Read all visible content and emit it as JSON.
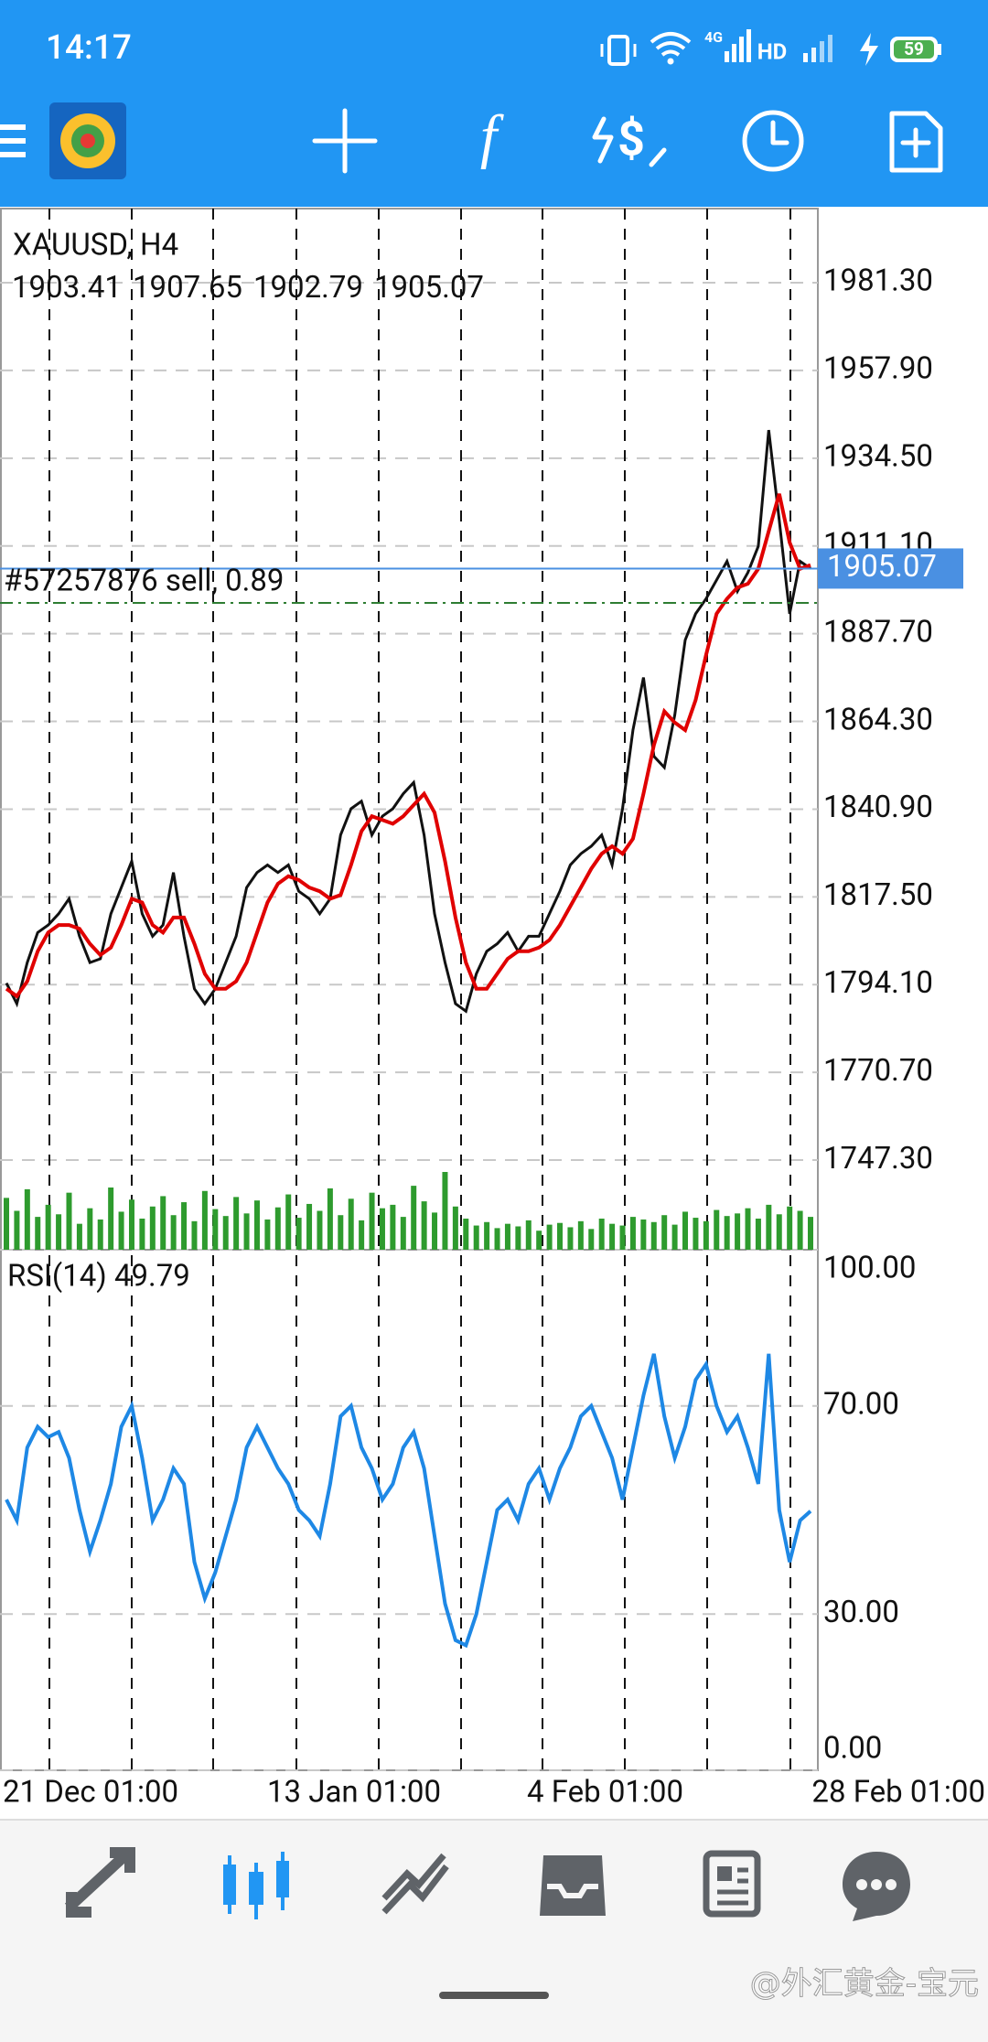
{
  "status_bar": {
    "time": "14:17",
    "network": "4G",
    "hd": "HD",
    "battery": "59"
  },
  "chart": {
    "symbol": "XAUUSD, H4",
    "ohlc": [
      1903.41,
      1907.65,
      1902.79,
      1905.07
    ],
    "order_label": "#57257876 sell, 0.89",
    "order_price": 1895.9,
    "current_price": 1905.07,
    "ylim": [
      1723.4,
      2001.07
    ],
    "yticks": [
      {
        "value": 1981.3,
        "label": "1981.30"
      },
      {
        "value": 1957.9,
        "label": "1957.90"
      },
      {
        "value": 1934.5,
        "label": "1934.50"
      },
      {
        "value": 1911.1,
        "label": "1911.10"
      },
      {
        "value": 1887.7,
        "label": "1887.70"
      },
      {
        "value": 1864.3,
        "label": "1864.30"
      },
      {
        "value": 1840.9,
        "label": "1840.90"
      },
      {
        "value": 1817.5,
        "label": "1817.50"
      },
      {
        "value": 1794.1,
        "label": "1794.10"
      },
      {
        "value": 1770.7,
        "label": "1770.70"
      },
      {
        "value": 1747.3,
        "label": "1747.30"
      }
    ],
    "x_labels": [
      "21 Dec 01:00",
      "13 Jan 01:00",
      "4 Feb 01:00",
      "28 Feb 01:00"
    ],
    "close": [
      1794.5,
      1789,
      1800,
      1808,
      1810,
      1813,
      1817,
      1807,
      1800,
      1801,
      1813,
      1820,
      1827,
      1813,
      1807,
      1810,
      1824,
      1807,
      1793,
      1789,
      1793,
      1800,
      1807,
      1820,
      1824,
      1826,
      1824,
      1826,
      1819,
      1817,
      1813,
      1817,
      1834,
      1841,
      1843,
      1834,
      1839,
      1841,
      1845,
      1848,
      1834,
      1813,
      1800,
      1789,
      1787,
      1797,
      1803,
      1805,
      1808,
      1803,
      1807,
      1807,
      1813,
      1819,
      1826,
      1829,
      1831,
      1834,
      1826,
      1841,
      1862,
      1876,
      1855,
      1852,
      1866,
      1886,
      1893,
      1897,
      1902,
      1907,
      1899,
      1904,
      1911,
      1942,
      1918,
      1893,
      1907,
      1905.07
    ],
    "ma": [
      1793,
      1791,
      1795,
      1803,
      1808,
      1810,
      1810,
      1809,
      1805,
      1802,
      1804,
      1810,
      1817,
      1816,
      1810,
      1808,
      1812,
      1812,
      1805,
      1797,
      1793,
      1793,
      1795,
      1800,
      1808,
      1816,
      1821,
      1823,
      1822,
      1820,
      1819,
      1817,
      1818,
      1826,
      1835,
      1839,
      1838,
      1837,
      1839,
      1842,
      1845,
      1840,
      1827,
      1812,
      1800,
      1793,
      1793,
      1797,
      1801,
      1803,
      1803,
      1804,
      1806,
      1810,
      1815,
      1820,
      1825,
      1829,
      1831,
      1829,
      1833,
      1845,
      1858,
      1867,
      1864,
      1862,
      1870,
      1882,
      1893,
      1897,
      1900,
      1901,
      1905,
      1915,
      1925,
      1912,
      1905,
      1906
    ],
    "volume": [
      60,
      45,
      70,
      38,
      52,
      41,
      66,
      30,
      48,
      35,
      72,
      44,
      58,
      36,
      50,
      62,
      40,
      55,
      33,
      68,
      47,
      39,
      61,
      42,
      57,
      35,
      49,
      64,
      37,
      53,
      45,
      71,
      40,
      59,
      34,
      66,
      48,
      52,
      38,
      74,
      56,
      43,
      90,
      50,
      36,
      28,
      32,
      25,
      30,
      27,
      34,
      22,
      29,
      31,
      26,
      33,
      24,
      36,
      30,
      28,
      38,
      35,
      32,
      40,
      29,
      44,
      37,
      33,
      46,
      39,
      42,
      48,
      36,
      52,
      41,
      50,
      45,
      38
    ],
    "rsi": {
      "title": "RSI(14) 49.79",
      "ylim": [
        0,
        100
      ],
      "yticks": [
        {
          "value": 100,
          "label": "100.00"
        },
        {
          "value": 70,
          "label": "70.00"
        },
        {
          "value": 30,
          "label": "30.00"
        },
        {
          "value": 0,
          "label": "0.00"
        }
      ],
      "values": [
        52,
        48,
        62,
        66,
        64,
        65,
        60,
        50,
        42,
        48,
        55,
        66,
        70,
        60,
        48,
        52,
        58,
        55,
        40,
        33,
        38,
        45,
        52,
        62,
        66,
        62,
        58,
        55,
        50,
        48,
        45,
        55,
        68,
        70,
        62,
        58,
        52,
        55,
        62,
        65,
        58,
        45,
        32,
        25,
        24,
        30,
        40,
        50,
        52,
        48,
        55,
        58,
        52,
        58,
        62,
        68,
        70,
        65,
        60,
        52,
        62,
        72,
        80,
        68,
        60,
        66,
        75,
        78,
        70,
        65,
        68,
        62,
        55,
        80,
        50,
        40,
        48,
        49.79
      ]
    }
  },
  "watermark": "@外汇黄金-宝元"
}
